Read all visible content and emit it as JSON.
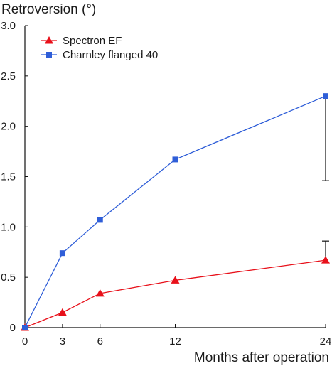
{
  "chart_data": {
    "type": "line",
    "ylabel": "Retroversion (°)",
    "xlabel": "Months after operation",
    "x": [
      0,
      3,
      6,
      12,
      24
    ],
    "x_ticks": [
      "0",
      "3",
      "6",
      "12",
      "24"
    ],
    "y_ticks": [
      "0",
      "0.5",
      "1.0",
      "1.5",
      "2.0",
      "2.5",
      "3.0"
    ],
    "xlim": [
      0,
      24
    ],
    "ylim": [
      0,
      3.0
    ],
    "grid": false,
    "legend_position": "top-left",
    "series": [
      {
        "name": "Spectron EF",
        "marker": "triangle",
        "color": "#e8101a",
        "values": [
          0,
          0.15,
          0.34,
          0.47,
          0.67
        ],
        "error_bar": {
          "x": 24,
          "upper": 0.86
        }
      },
      {
        "name": "Charnley flanged 40",
        "marker": "square",
        "color": "#2f5ed8",
        "values": [
          0,
          0.74,
          1.07,
          1.67,
          2.3
        ],
        "error_bar": {
          "x": 24,
          "lower": 1.46
        }
      }
    ]
  }
}
